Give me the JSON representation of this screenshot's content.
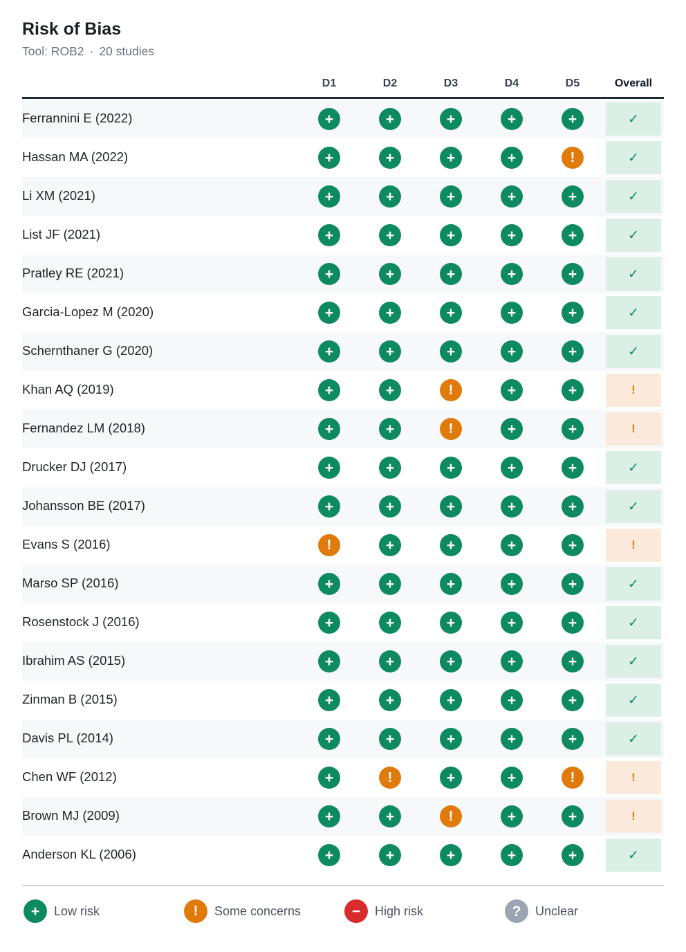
{
  "header": {
    "title": "Risk of Bias",
    "tool": "Tool: ROB2",
    "separator": "·",
    "count": "20 studies"
  },
  "columns": [
    "D1",
    "D2",
    "D3",
    "D4",
    "D5",
    "Overall"
  ],
  "symbols": {
    "low": "+",
    "some": "!",
    "high": "−",
    "unclear": "?",
    "overall_low": "✓",
    "overall_some": "!"
  },
  "colors": {
    "low": "#0d8a5f",
    "some": "#e07a0b",
    "high": "#d62c2c",
    "unclear": "#9aa4b2"
  },
  "chart_data": {
    "type": "table",
    "domains": [
      "D1",
      "D2",
      "D3",
      "D4",
      "D5"
    ],
    "rows": [
      {
        "study": "Ferrannini E (2022)",
        "d": [
          "low",
          "low",
          "low",
          "low",
          "low"
        ],
        "overall": "low"
      },
      {
        "study": "Hassan MA (2022)",
        "d": [
          "low",
          "low",
          "low",
          "low",
          "some"
        ],
        "overall": "low"
      },
      {
        "study": "Li XM (2021)",
        "d": [
          "low",
          "low",
          "low",
          "low",
          "low"
        ],
        "overall": "low"
      },
      {
        "study": "List JF (2021)",
        "d": [
          "low",
          "low",
          "low",
          "low",
          "low"
        ],
        "overall": "low"
      },
      {
        "study": "Pratley RE (2021)",
        "d": [
          "low",
          "low",
          "low",
          "low",
          "low"
        ],
        "overall": "low"
      },
      {
        "study": "Garcia-Lopez M (2020)",
        "d": [
          "low",
          "low",
          "low",
          "low",
          "low"
        ],
        "overall": "low"
      },
      {
        "study": "Schernthaner G (2020)",
        "d": [
          "low",
          "low",
          "low",
          "low",
          "low"
        ],
        "overall": "low"
      },
      {
        "study": "Khan AQ (2019)",
        "d": [
          "low",
          "low",
          "some",
          "low",
          "low"
        ],
        "overall": "some"
      },
      {
        "study": "Fernandez LM (2018)",
        "d": [
          "low",
          "low",
          "some",
          "low",
          "low"
        ],
        "overall": "some"
      },
      {
        "study": "Drucker DJ (2017)",
        "d": [
          "low",
          "low",
          "low",
          "low",
          "low"
        ],
        "overall": "low"
      },
      {
        "study": "Johansson BE (2017)",
        "d": [
          "low",
          "low",
          "low",
          "low",
          "low"
        ],
        "overall": "low"
      },
      {
        "study": "Evans S (2016)",
        "d": [
          "some",
          "low",
          "low",
          "low",
          "low"
        ],
        "overall": "some"
      },
      {
        "study": "Marso SP (2016)",
        "d": [
          "low",
          "low",
          "low",
          "low",
          "low"
        ],
        "overall": "low"
      },
      {
        "study": "Rosenstock J (2016)",
        "d": [
          "low",
          "low",
          "low",
          "low",
          "low"
        ],
        "overall": "low"
      },
      {
        "study": "Ibrahim AS (2015)",
        "d": [
          "low",
          "low",
          "low",
          "low",
          "low"
        ],
        "overall": "low"
      },
      {
        "study": "Zinman B (2015)",
        "d": [
          "low",
          "low",
          "low",
          "low",
          "low"
        ],
        "overall": "low"
      },
      {
        "study": "Davis PL (2014)",
        "d": [
          "low",
          "low",
          "low",
          "low",
          "low"
        ],
        "overall": "low"
      },
      {
        "study": "Chen WF (2012)",
        "d": [
          "low",
          "some",
          "low",
          "low",
          "some"
        ],
        "overall": "some"
      },
      {
        "study": "Brown MJ (2009)",
        "d": [
          "low",
          "low",
          "some",
          "low",
          "low"
        ],
        "overall": "some"
      },
      {
        "study": "Anderson KL (2006)",
        "d": [
          "low",
          "low",
          "low",
          "low",
          "low"
        ],
        "overall": "low"
      }
    ]
  },
  "legend": [
    {
      "key": "low",
      "label": "Low risk"
    },
    {
      "key": "some",
      "label": "Some concerns"
    },
    {
      "key": "high",
      "label": "High risk"
    },
    {
      "key": "unclear",
      "label": "Unclear"
    }
  ]
}
